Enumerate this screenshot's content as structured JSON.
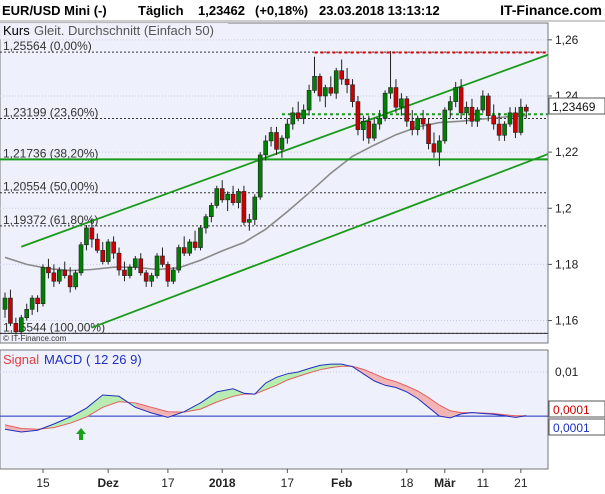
{
  "header": {
    "instrument": "EUR/USD Mini (-)",
    "interval": "Täglich",
    "price": "1,23462",
    "change": "(+0,18%)",
    "datetime": "23.03.2018 13:13:12",
    "brand": "IT-Finance.com"
  },
  "legend": {
    "kurs": "Kurs",
    "ma": "Gleit. Durchschnitt (Einfach 50)"
  },
  "copyright": "© IT-Finance.com",
  "price_box": "1,23469",
  "macd_legend": {
    "signal": "Signal",
    "macd": "MACD",
    "params": "( 12 26 9)"
  },
  "macd_boxes": {
    "signal": "0,0001",
    "macd": "0,0001"
  },
  "colors": {
    "up": "#008000",
    "down": "#cc0000",
    "channel": "#1a9a1a",
    "ma": "#8a8a8a",
    "resistance": "#e00000",
    "support": "#1a9a1a",
    "panel_bg": "#eef0fb",
    "macd_line": "#2030c0",
    "signal_line": "#e06060"
  },
  "chart_data": [
    {
      "type": "candlestick",
      "title": "EUR/USD Mini (-)",
      "ylim": [
        1.152,
        1.266
      ],
      "y_ticks": [
        {
          "value": 1.26,
          "label": "1,26"
        },
        {
          "value": 1.24,
          "label": "1,24"
        },
        {
          "value": 1.22,
          "label": "1,22"
        },
        {
          "value": 1.2,
          "label": "1,2"
        },
        {
          "value": 1.18,
          "label": "1,18"
        },
        {
          "value": 1.16,
          "label": "1,16"
        }
      ],
      "x_labels": [
        {
          "label": "15",
          "bold": false,
          "index": 7
        },
        {
          "label": "Dez",
          "bold": true,
          "index": 19
        },
        {
          "label": "17",
          "bold": false,
          "index": 30
        },
        {
          "label": "2018",
          "bold": true,
          "index": 40
        },
        {
          "label": "17",
          "bold": false,
          "index": 52
        },
        {
          "label": "Feb",
          "bold": true,
          "index": 62
        },
        {
          "label": "18",
          "bold": false,
          "index": 74
        },
        {
          "label": "Mär",
          "bold": true,
          "index": 81
        },
        {
          "label": "11",
          "bold": false,
          "index": 88
        },
        {
          "label": "21",
          "bold": false,
          "index": 95
        }
      ],
      "fibonacci": [
        {
          "value": 1.25564,
          "label": "1,25564 (0,00%)"
        },
        {
          "value": 1.23199,
          "label": "1,23199 (23,60%)"
        },
        {
          "value": 1.21736,
          "label": "1,21736 (38,20%)"
        },
        {
          "value": 1.20554,
          "label": "1,20554 (50,00%)"
        },
        {
          "value": 1.19372,
          "label": "1,19372 (61,80%)"
        },
        {
          "value": 1.15544,
          "label": "1,15544 (100,00%)"
        }
      ],
      "channel": {
        "upper": [
          {
            "i": 3,
            "v": 1.1863
          },
          {
            "i": 100,
            "v": 1.2547
          }
        ],
        "lower": [
          {
            "i": 16,
            "v": 1.1575
          },
          {
            "i": 100,
            "v": 1.2193
          }
        ]
      },
      "resistance": {
        "value": 1.2555,
        "from": 57,
        "to": 100
      },
      "support_dashed": {
        "value": 1.2335,
        "from": 51,
        "to": 100
      },
      "support_solid": {
        "value": 1.2174
      },
      "ohlc": [
        [
          1.164,
          1.17,
          1.161,
          1.168
        ],
        [
          1.168,
          1.171,
          1.158,
          1.159
        ],
        [
          1.159,
          1.161,
          1.155,
          1.156
        ],
        [
          1.156,
          1.162,
          1.155,
          1.161
        ],
        [
          1.161,
          1.166,
          1.16,
          1.164
        ],
        [
          1.164,
          1.169,
          1.162,
          1.168
        ],
        [
          1.168,
          1.169,
          1.163,
          1.166
        ],
        [
          1.166,
          1.18,
          1.165,
          1.179
        ],
        [
          1.179,
          1.182,
          1.175,
          1.177
        ],
        [
          1.177,
          1.18,
          1.172,
          1.174
        ],
        [
          1.174,
          1.179,
          1.173,
          1.178
        ],
        [
          1.178,
          1.181,
          1.175,
          1.176
        ],
        [
          1.176,
          1.179,
          1.17,
          1.172
        ],
        [
          1.172,
          1.178,
          1.171,
          1.177
        ],
        [
          1.177,
          1.188,
          1.176,
          1.187
        ],
        [
          1.187,
          1.194,
          1.185,
          1.193
        ],
        [
          1.193,
          1.196,
          1.186,
          1.189
        ],
        [
          1.189,
          1.191,
          1.184,
          1.185
        ],
        [
          1.185,
          1.188,
          1.18,
          1.181
        ],
        [
          1.181,
          1.189,
          1.18,
          1.188
        ],
        [
          1.188,
          1.19,
          1.182,
          1.184
        ],
        [
          1.184,
          1.186,
          1.176,
          1.178
        ],
        [
          1.178,
          1.181,
          1.174,
          1.176
        ],
        [
          1.176,
          1.18,
          1.175,
          1.179
        ],
        [
          1.179,
          1.183,
          1.178,
          1.182
        ],
        [
          1.182,
          1.184,
          1.176,
          1.177
        ],
        [
          1.177,
          1.178,
          1.172,
          1.174
        ],
        [
          1.174,
          1.177,
          1.172,
          1.176
        ],
        [
          1.176,
          1.184,
          1.175,
          1.183
        ],
        [
          1.183,
          1.186,
          1.179,
          1.18
        ],
        [
          1.18,
          1.181,
          1.172,
          1.174
        ],
        [
          1.174,
          1.179,
          1.173,
          1.178
        ],
        [
          1.178,
          1.187,
          1.177,
          1.186
        ],
        [
          1.186,
          1.19,
          1.183,
          1.184
        ],
        [
          1.184,
          1.189,
          1.183,
          1.188
        ],
        [
          1.188,
          1.192,
          1.185,
          1.186
        ],
        [
          1.186,
          1.194,
          1.185,
          1.193
        ],
        [
          1.193,
          1.198,
          1.191,
          1.197
        ],
        [
          1.197,
          1.202,
          1.195,
          1.201
        ],
        [
          1.201,
          1.208,
          1.2,
          1.207
        ],
        [
          1.207,
          1.21,
          1.202,
          1.203
        ],
        [
          1.203,
          1.206,
          1.199,
          1.205
        ],
        [
          1.205,
          1.208,
          1.201,
          1.202
        ],
        [
          1.202,
          1.207,
          1.2,
          1.206
        ],
        [
          1.206,
          1.208,
          1.194,
          1.195
        ],
        [
          1.195,
          1.198,
          1.192,
          1.196
        ],
        [
          1.196,
          1.205,
          1.194,
          1.204
        ],
        [
          1.204,
          1.22,
          1.203,
          1.219
        ],
        [
          1.219,
          1.226,
          1.217,
          1.224
        ],
        [
          1.224,
          1.229,
          1.222,
          1.227
        ],
        [
          1.227,
          1.229,
          1.219,
          1.221
        ],
        [
          1.221,
          1.226,
          1.218,
          1.225
        ],
        [
          1.225,
          1.232,
          1.223,
          1.23
        ],
        [
          1.23,
          1.236,
          1.228,
          1.234
        ],
        [
          1.234,
          1.238,
          1.231,
          1.232
        ],
        [
          1.232,
          1.237,
          1.23,
          1.235
        ],
        [
          1.235,
          1.244,
          1.233,
          1.242
        ],
        [
          1.242,
          1.254,
          1.241,
          1.247
        ],
        [
          1.247,
          1.248,
          1.238,
          1.24
        ],
        [
          1.24,
          1.244,
          1.236,
          1.243
        ],
        [
          1.243,
          1.247,
          1.24,
          1.241
        ],
        [
          1.241,
          1.25,
          1.239,
          1.249
        ],
        [
          1.249,
          1.253,
          1.244,
          1.246
        ],
        [
          1.246,
          1.25,
          1.241,
          1.244
        ],
        [
          1.244,
          1.246,
          1.236,
          1.238
        ],
        [
          1.238,
          1.24,
          1.226,
          1.228
        ],
        [
          1.228,
          1.233,
          1.224,
          1.231
        ],
        [
          1.231,
          1.233,
          1.223,
          1.225
        ],
        [
          1.225,
          1.232,
          1.224,
          1.23
        ],
        [
          1.23,
          1.235,
          1.228,
          1.232
        ],
        [
          1.232,
          1.242,
          1.231,
          1.241
        ],
        [
          1.241,
          1.256,
          1.239,
          1.243
        ],
        [
          1.243,
          1.246,
          1.234,
          1.236
        ],
        [
          1.236,
          1.241,
          1.233,
          1.239
        ],
        [
          1.239,
          1.24,
          1.229,
          1.231
        ],
        [
          1.231,
          1.235,
          1.226,
          1.228
        ],
        [
          1.228,
          1.233,
          1.226,
          1.232
        ],
        [
          1.232,
          1.235,
          1.228,
          1.23
        ],
        [
          1.23,
          1.232,
          1.221,
          1.223
        ],
        [
          1.223,
          1.227,
          1.218,
          1.22
        ],
        [
          1.22,
          1.226,
          1.215,
          1.224
        ],
        [
          1.224,
          1.236,
          1.223,
          1.235
        ],
        [
          1.235,
          1.24,
          1.232,
          1.238
        ],
        [
          1.238,
          1.245,
          1.236,
          1.243
        ],
        [
          1.243,
          1.246,
          1.232,
          1.234
        ],
        [
          1.234,
          1.238,
          1.23,
          1.236
        ],
        [
          1.236,
          1.239,
          1.229,
          1.231
        ],
        [
          1.231,
          1.236,
          1.229,
          1.235
        ],
        [
          1.235,
          1.242,
          1.234,
          1.24
        ],
        [
          1.24,
          1.241,
          1.231,
          1.233
        ],
        [
          1.233,
          1.237,
          1.228,
          1.23
        ],
        [
          1.23,
          1.234,
          1.224,
          1.226
        ],
        [
          1.226,
          1.231,
          1.224,
          1.23
        ],
        [
          1.23,
          1.236,
          1.229,
          1.234
        ],
        [
          1.234,
          1.236,
          1.225,
          1.227
        ],
        [
          1.227,
          1.239,
          1.226,
          1.236
        ],
        [
          1.236,
          1.237,
          1.232,
          1.2346
        ]
      ],
      "sma50": [
        [
          0,
          1.1825
        ],
        [
          4,
          1.18
        ],
        [
          8,
          1.1785
        ],
        [
          12,
          1.1778
        ],
        [
          16,
          1.1782
        ],
        [
          20,
          1.179
        ],
        [
          24,
          1.179
        ],
        [
          28,
          1.1782
        ],
        [
          32,
          1.1788
        ],
        [
          36,
          1.1815
        ],
        [
          40,
          1.1848
        ],
        [
          44,
          1.1878
        ],
        [
          48,
          1.1925
        ],
        [
          52,
          1.1988
        ],
        [
          56,
          1.2055
        ],
        [
          60,
          1.2125
        ],
        [
          64,
          1.2185
        ],
        [
          68,
          1.2225
        ],
        [
          72,
          1.2262
        ],
        [
          76,
          1.229
        ],
        [
          80,
          1.2305
        ],
        [
          84,
          1.231
        ],
        [
          88,
          1.2318
        ],
        [
          92,
          1.2325
        ],
        [
          96,
          1.233
        ]
      ]
    },
    {
      "type": "line",
      "title": "MACD",
      "ylim": [
        -0.012,
        0.015
      ],
      "y_ticks": [
        {
          "value": 0.01,
          "label": "0,01"
        },
        {
          "value": 0,
          "label": "0"
        }
      ],
      "series": [
        {
          "name": "MACD",
          "points": [
            [
              0,
              -0.003
            ],
            [
              3,
              -0.0036
            ],
            [
              6,
              -0.0032
            ],
            [
              9,
              -0.0018
            ],
            [
              12,
              -0.0002
            ],
            [
              15,
              0.0018
            ],
            [
              18,
              0.0048
            ],
            [
              21,
              0.0045
            ],
            [
              24,
              0.002
            ],
            [
              27,
              0.0007
            ],
            [
              30,
              -0.0003
            ],
            [
              33,
              0.001
            ],
            [
              36,
              0.003
            ],
            [
              39,
              0.0055
            ],
            [
              42,
              0.0062
            ],
            [
              44,
              0.0052
            ],
            [
              46,
              0.005
            ],
            [
              48,
              0.0075
            ],
            [
              50,
              0.0088
            ],
            [
              52,
              0.0096
            ],
            [
              54,
              0.01
            ],
            [
              56,
              0.0108
            ],
            [
              58,
              0.0115
            ],
            [
              60,
              0.0118
            ],
            [
              62,
              0.0118
            ],
            [
              64,
              0.0112
            ],
            [
              66,
              0.0096
            ],
            [
              68,
              0.008
            ],
            [
              70,
              0.007
            ],
            [
              72,
              0.0065
            ],
            [
              74,
              0.0055
            ],
            [
              76,
              0.004
            ],
            [
              78,
              0.002
            ],
            [
              80,
              0.0
            ],
            [
              82,
              -0.0004
            ],
            [
              84,
              0.0005
            ],
            [
              86,
              0.0008
            ],
            [
              88,
              0.0006
            ],
            [
              90,
              0.0004
            ],
            [
              92,
              0.0001
            ],
            [
              94,
              -0.0003
            ],
            [
              96,
              0.0001
            ]
          ]
        },
        {
          "name": "Signal",
          "points": [
            [
              0,
              -0.002
            ],
            [
              3,
              -0.0028
            ],
            [
              6,
              -0.003
            ],
            [
              9,
              -0.0026
            ],
            [
              12,
              -0.0016
            ],
            [
              15,
              -0.0002
            ],
            [
              18,
              0.002
            ],
            [
              21,
              0.0033
            ],
            [
              24,
              0.003
            ],
            [
              27,
              0.002
            ],
            [
              30,
              0.001
            ],
            [
              33,
              0.0009
            ],
            [
              36,
              0.0016
            ],
            [
              39,
              0.0032
            ],
            [
              42,
              0.0045
            ],
            [
              44,
              0.005
            ],
            [
              46,
              0.005
            ],
            [
              48,
              0.006
            ],
            [
              50,
              0.007
            ],
            [
              52,
              0.0082
            ],
            [
              54,
              0.009
            ],
            [
              56,
              0.0098
            ],
            [
              58,
              0.0105
            ],
            [
              60,
              0.011
            ],
            [
              62,
              0.0113
            ],
            [
              64,
              0.0113
            ],
            [
              66,
              0.0106
            ],
            [
              68,
              0.0096
            ],
            [
              70,
              0.0085
            ],
            [
              72,
              0.0078
            ],
            [
              74,
              0.0068
            ],
            [
              76,
              0.0057
            ],
            [
              78,
              0.0042
            ],
            [
              80,
              0.0025
            ],
            [
              82,
              0.0012
            ],
            [
              84,
              0.0008
            ],
            [
              86,
              0.0008
            ],
            [
              88,
              0.0007
            ],
            [
              90,
              0.0006
            ],
            [
              92,
              0.0003
            ],
            [
              94,
              0.0001
            ],
            [
              96,
              0.0001
            ]
          ]
        }
      ],
      "buy_arrow_index": 14
    }
  ]
}
